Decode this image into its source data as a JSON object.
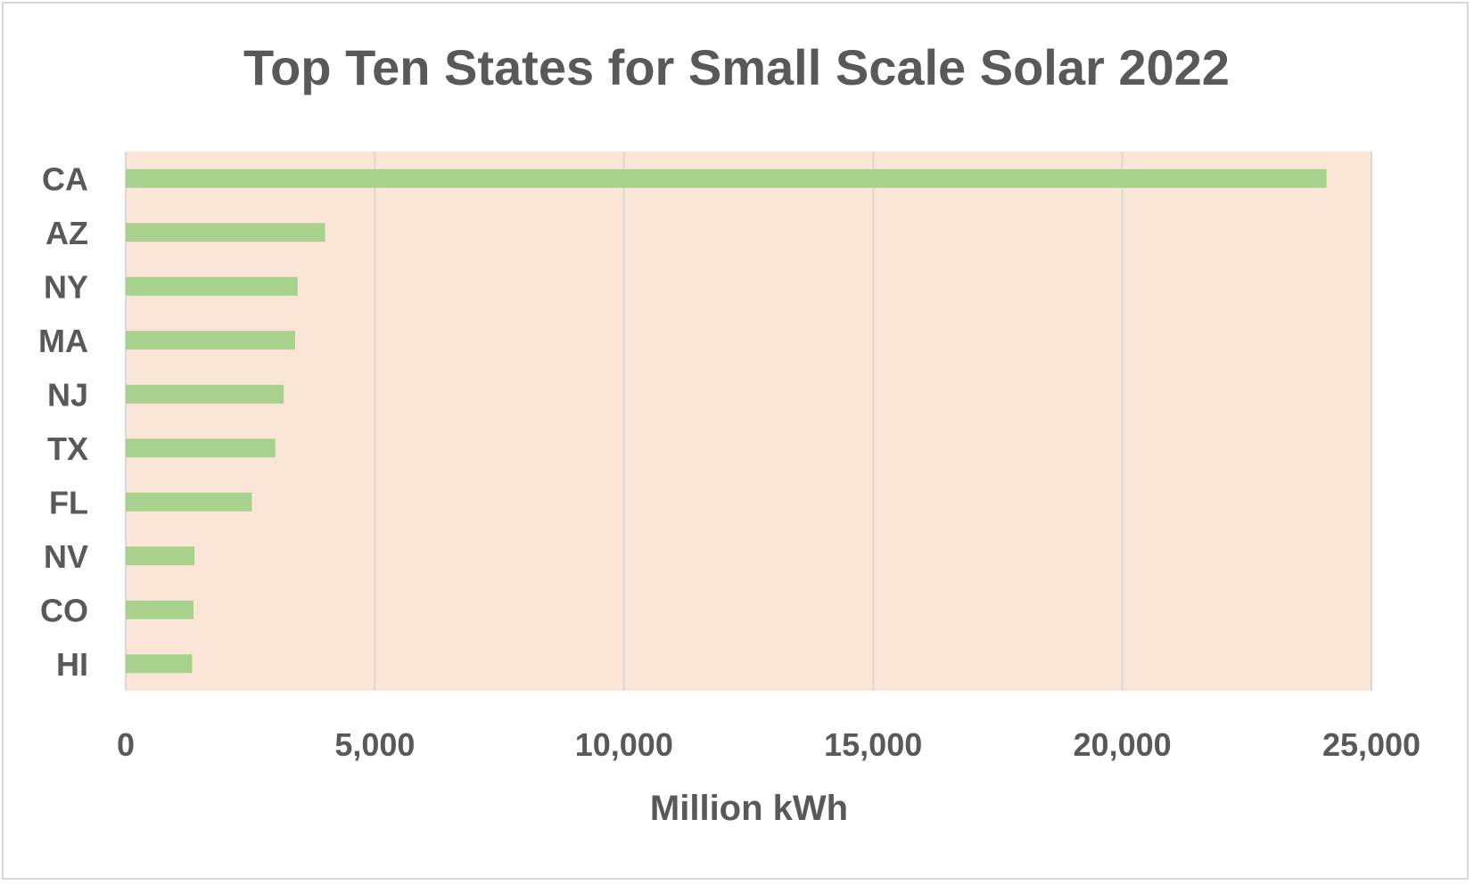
{
  "chart_data": {
    "type": "bar",
    "orientation": "horizontal",
    "title": "Top Ten States for Small Scale Solar 2022",
    "xlabel": "Million kWh",
    "ylabel": "",
    "categories": [
      "CA",
      "AZ",
      "NY",
      "MA",
      "NJ",
      "TX",
      "FL",
      "NV",
      "CO",
      "HI"
    ],
    "values": [
      24100,
      4000,
      3450,
      3400,
      3170,
      3000,
      2530,
      1380,
      1360,
      1330
    ],
    "xlim": [
      0,
      25000
    ],
    "xticks": [
      "0",
      "5,000",
      "10,000",
      "15,000",
      "20,000",
      "25,000"
    ],
    "xtick_values": [
      0,
      5000,
      10000,
      15000,
      20000,
      25000
    ],
    "grid": "vertical",
    "colors": {
      "bar": "#a9d18e",
      "plot_background": "#fbe5d6",
      "grid": "#d9d9d9",
      "text": "#595959"
    }
  }
}
